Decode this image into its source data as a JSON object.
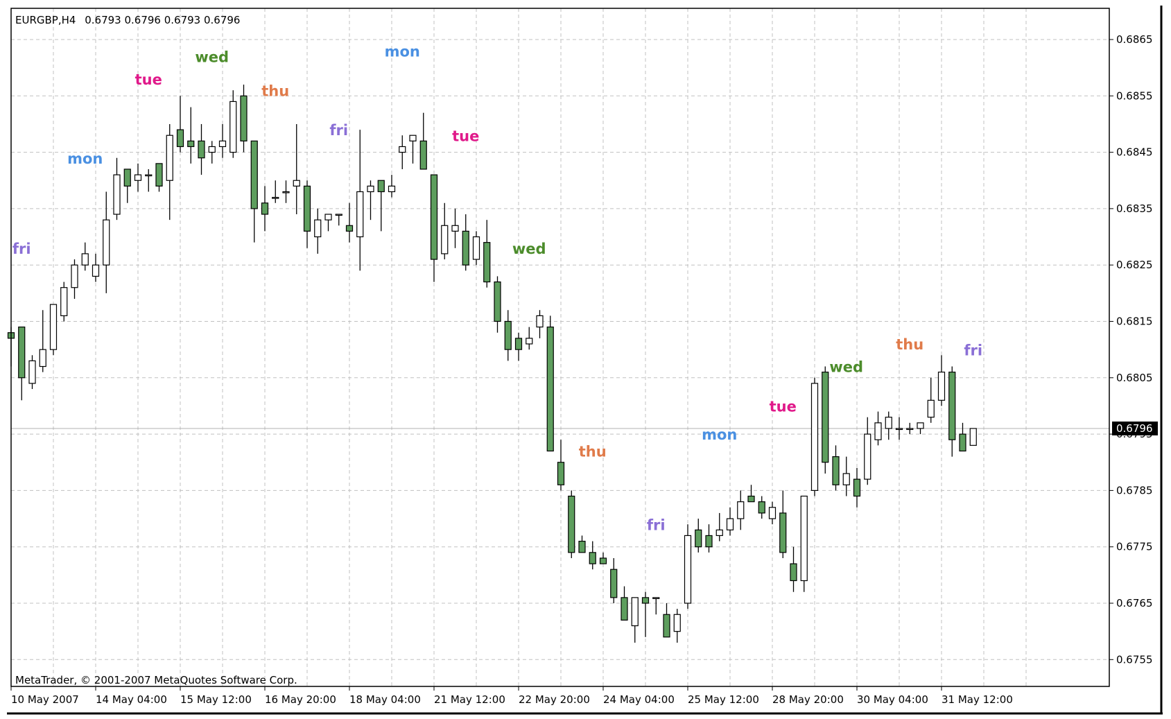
{
  "header": {
    "symbol": "EURGBP,H4",
    "ohlc": "0.6793 0.6796 0.6793 0.6796"
  },
  "footer": {
    "copyright": "MetaTrader, © 2001-2007 MetaQuotes Software Corp."
  },
  "current_price_label": "0.6796",
  "colors": {
    "bull_fill": "#ffffff",
    "bear_fill": "#5e9e5e",
    "grid": "#c0c0c0",
    "mon": "#4a90e2",
    "tue": "#e0198a",
    "wed": "#4c8c2b",
    "thu": "#e07b4a",
    "fri": "#8a6fd6"
  },
  "chart_data": {
    "type": "candlestick",
    "ylim": [
      0.6749,
      0.6873
    ],
    "y_ticks": [
      "0.6865",
      "0.6855",
      "0.6845",
      "0.6835",
      "0.6825",
      "0.6815",
      "0.6805",
      "0.6795",
      "0.6785",
      "0.6775",
      "0.6765",
      "0.6755"
    ],
    "x_tick_labels": [
      "10 May 2007",
      "14 May 04:00",
      "15 May 12:00",
      "16 May 20:00",
      "18 May 04:00",
      "21 May 12:00",
      "22 May 20:00",
      "24 May 04:00",
      "25 May 12:00",
      "28 May 20:00",
      "30 May 04:00",
      "31 May 12:00"
    ],
    "current_price": 0.6796,
    "day_labels": [
      {
        "text": "fri",
        "index": 1,
        "price": 0.6827,
        "day": "fri"
      },
      {
        "text": "mon",
        "index": 7,
        "price": 0.6843,
        "day": "mon"
      },
      {
        "text": "tue",
        "index": 13,
        "price": 0.6857,
        "day": "tue"
      },
      {
        "text": "wed",
        "index": 19,
        "price": 0.6861,
        "day": "wed"
      },
      {
        "text": "thu",
        "index": 25,
        "price": 0.6855,
        "day": "thu"
      },
      {
        "text": "fri",
        "index": 31,
        "price": 0.6848,
        "day": "fri"
      },
      {
        "text": "mon",
        "index": 37,
        "price": 0.6862,
        "day": "mon"
      },
      {
        "text": "tue",
        "index": 43,
        "price": 0.6847,
        "day": "tue"
      },
      {
        "text": "wed",
        "index": 49,
        "price": 0.6827,
        "day": "wed"
      },
      {
        "text": "thu",
        "index": 55,
        "price": 0.6791,
        "day": "thu"
      },
      {
        "text": "fri",
        "index": 61,
        "price": 0.6778,
        "day": "fri"
      },
      {
        "text": "mon",
        "index": 67,
        "price": 0.6794,
        "day": "mon"
      },
      {
        "text": "tue",
        "index": 73,
        "price": 0.6799,
        "day": "tue"
      },
      {
        "text": "wed",
        "index": 79,
        "price": 0.6806,
        "day": "wed"
      },
      {
        "text": "thu",
        "index": 85,
        "price": 0.681,
        "day": "thu"
      },
      {
        "text": "fri",
        "index": 91,
        "price": 0.6809,
        "day": "fri"
      }
    ],
    "candles": [
      {
        "o": 0.6813,
        "h": 0.6814,
        "l": 0.6807,
        "c": 0.6812
      },
      {
        "o": 0.6814,
        "h": 0.6814,
        "l": 0.6801,
        "c": 0.6805
      },
      {
        "o": 0.6804,
        "h": 0.6809,
        "l": 0.6803,
        "c": 0.6808
      },
      {
        "o": 0.6807,
        "h": 0.6817,
        "l": 0.6806,
        "c": 0.681
      },
      {
        "o": 0.681,
        "h": 0.6818,
        "l": 0.6809,
        "c": 0.6818
      },
      {
        "o": 0.6816,
        "h": 0.6822,
        "l": 0.6815,
        "c": 0.6821
      },
      {
        "o": 0.6821,
        "h": 0.6826,
        "l": 0.6819,
        "c": 0.6825
      },
      {
        "o": 0.6825,
        "h": 0.6829,
        "l": 0.6824,
        "c": 0.6827
      },
      {
        "o": 0.6823,
        "h": 0.6827,
        "l": 0.6822,
        "c": 0.6825
      },
      {
        "o": 0.6825,
        "h": 0.6838,
        "l": 0.682,
        "c": 0.6833
      },
      {
        "o": 0.6834,
        "h": 0.6844,
        "l": 0.6833,
        "c": 0.6841
      },
      {
        "o": 0.6842,
        "h": 0.6842,
        "l": 0.6836,
        "c": 0.6839
      },
      {
        "o": 0.684,
        "h": 0.6843,
        "l": 0.6838,
        "c": 0.6841
      },
      {
        "o": 0.6841,
        "h": 0.6842,
        "l": 0.6838,
        "c": 0.6841
      },
      {
        "o": 0.6843,
        "h": 0.6843,
        "l": 0.6838,
        "c": 0.6839
      },
      {
        "o": 0.684,
        "h": 0.685,
        "l": 0.6833,
        "c": 0.6848
      },
      {
        "o": 0.6849,
        "h": 0.6855,
        "l": 0.6845,
        "c": 0.6846
      },
      {
        "o": 0.6847,
        "h": 0.6853,
        "l": 0.6843,
        "c": 0.6846
      },
      {
        "o": 0.6847,
        "h": 0.685,
        "l": 0.6841,
        "c": 0.6844
      },
      {
        "o": 0.6845,
        "h": 0.6847,
        "l": 0.6843,
        "c": 0.6846
      },
      {
        "o": 0.6846,
        "h": 0.685,
        "l": 0.6844,
        "c": 0.6847
      },
      {
        "o": 0.6845,
        "h": 0.6856,
        "l": 0.6844,
        "c": 0.6854
      },
      {
        "o": 0.6855,
        "h": 0.6857,
        "l": 0.6845,
        "c": 0.6847
      },
      {
        "o": 0.6847,
        "h": 0.6847,
        "l": 0.6829,
        "c": 0.6835
      },
      {
        "o": 0.6836,
        "h": 0.6839,
        "l": 0.6831,
        "c": 0.6834
      },
      {
        "o": 0.6837,
        "h": 0.684,
        "l": 0.6836,
        "c": 0.6837
      },
      {
        "o": 0.6838,
        "h": 0.684,
        "l": 0.6836,
        "c": 0.6838
      },
      {
        "o": 0.6839,
        "h": 0.685,
        "l": 0.6834,
        "c": 0.684
      },
      {
        "o": 0.6839,
        "h": 0.684,
        "l": 0.6828,
        "c": 0.6831
      },
      {
        "o": 0.683,
        "h": 0.6835,
        "l": 0.6827,
        "c": 0.6833
      },
      {
        "o": 0.6833,
        "h": 0.6834,
        "l": 0.6831,
        "c": 0.6834
      },
      {
        "o": 0.6834,
        "h": 0.6834,
        "l": 0.6832,
        "c": 0.6834
      },
      {
        "o": 0.6832,
        "h": 0.6836,
        "l": 0.6829,
        "c": 0.6831
      },
      {
        "o": 0.683,
        "h": 0.6849,
        "l": 0.6824,
        "c": 0.6838
      },
      {
        "o": 0.6838,
        "h": 0.684,
        "l": 0.6833,
        "c": 0.6839
      },
      {
        "o": 0.684,
        "h": 0.684,
        "l": 0.6831,
        "c": 0.6838
      },
      {
        "o": 0.6838,
        "h": 0.6841,
        "l": 0.6837,
        "c": 0.6839
      },
      {
        "o": 0.6845,
        "h": 0.6848,
        "l": 0.6842,
        "c": 0.6846
      },
      {
        "o": 0.6847,
        "h": 0.6848,
        "l": 0.6843,
        "c": 0.6848
      },
      {
        "o": 0.6847,
        "h": 0.6852,
        "l": 0.6842,
        "c": 0.6842
      },
      {
        "o": 0.6841,
        "h": 0.6841,
        "l": 0.6822,
        "c": 0.6826
      },
      {
        "o": 0.6827,
        "h": 0.6836,
        "l": 0.6826,
        "c": 0.6832
      },
      {
        "o": 0.6831,
        "h": 0.6835,
        "l": 0.6828,
        "c": 0.6832
      },
      {
        "o": 0.6831,
        "h": 0.6834,
        "l": 0.6824,
        "c": 0.6825
      },
      {
        "o": 0.6826,
        "h": 0.6831,
        "l": 0.6825,
        "c": 0.683
      },
      {
        "o": 0.6829,
        "h": 0.6833,
        "l": 0.6821,
        "c": 0.6822
      },
      {
        "o": 0.6822,
        "h": 0.6823,
        "l": 0.6813,
        "c": 0.6815
      },
      {
        "o": 0.6815,
        "h": 0.6817,
        "l": 0.6808,
        "c": 0.681
      },
      {
        "o": 0.6812,
        "h": 0.6813,
        "l": 0.6808,
        "c": 0.681
      },
      {
        "o": 0.6811,
        "h": 0.6814,
        "l": 0.681,
        "c": 0.6812
      },
      {
        "o": 0.6814,
        "h": 0.6817,
        "l": 0.6812,
        "c": 0.6816
      },
      {
        "o": 0.6814,
        "h": 0.6816,
        "l": 0.6792,
        "c": 0.6792
      },
      {
        "o": 0.679,
        "h": 0.6794,
        "l": 0.6785,
        "c": 0.6786
      },
      {
        "o": 0.6784,
        "h": 0.6785,
        "l": 0.6773,
        "c": 0.6774
      },
      {
        "o": 0.6776,
        "h": 0.6777,
        "l": 0.6774,
        "c": 0.6774
      },
      {
        "o": 0.6774,
        "h": 0.6776,
        "l": 0.6771,
        "c": 0.6772
      },
      {
        "o": 0.6773,
        "h": 0.6774,
        "l": 0.6772,
        "c": 0.6772
      },
      {
        "o": 0.6771,
        "h": 0.6773,
        "l": 0.6765,
        "c": 0.6766
      },
      {
        "o": 0.6766,
        "h": 0.6768,
        "l": 0.6762,
        "c": 0.6762
      },
      {
        "o": 0.6761,
        "h": 0.6766,
        "l": 0.6758,
        "c": 0.6766
      },
      {
        "o": 0.6766,
        "h": 0.6767,
        "l": 0.6759,
        "c": 0.6765
      },
      {
        "o": 0.6766,
        "h": 0.6766,
        "l": 0.6763,
        "c": 0.6766
      },
      {
        "o": 0.6763,
        "h": 0.6765,
        "l": 0.676,
        "c": 0.6759
      },
      {
        "o": 0.676,
        "h": 0.6764,
        "l": 0.6758,
        "c": 0.6763
      },
      {
        "o": 0.6765,
        "h": 0.6779,
        "l": 0.6764,
        "c": 0.6777
      },
      {
        "o": 0.6778,
        "h": 0.678,
        "l": 0.6774,
        "c": 0.6775
      },
      {
        "o": 0.6777,
        "h": 0.6779,
        "l": 0.6774,
        "c": 0.6775
      },
      {
        "o": 0.6777,
        "h": 0.6781,
        "l": 0.6776,
        "c": 0.6778
      },
      {
        "o": 0.6778,
        "h": 0.6782,
        "l": 0.6777,
        "c": 0.678
      },
      {
        "o": 0.678,
        "h": 0.6785,
        "l": 0.6778,
        "c": 0.6783
      },
      {
        "o": 0.6784,
        "h": 0.6786,
        "l": 0.6783,
        "c": 0.6783
      },
      {
        "o": 0.6783,
        "h": 0.6784,
        "l": 0.678,
        "c": 0.6781
      },
      {
        "o": 0.678,
        "h": 0.6783,
        "l": 0.6779,
        "c": 0.6782
      },
      {
        "o": 0.6781,
        "h": 0.6785,
        "l": 0.6773,
        "c": 0.6774
      },
      {
        "o": 0.6772,
        "h": 0.6775,
        "l": 0.6767,
        "c": 0.6769
      },
      {
        "o": 0.6769,
        "h": 0.6784,
        "l": 0.6767,
        "c": 0.6784
      },
      {
        "o": 0.6785,
        "h": 0.6805,
        "l": 0.6784,
        "c": 0.6804
      },
      {
        "o": 0.6806,
        "h": 0.6807,
        "l": 0.6788,
        "c": 0.679
      },
      {
        "o": 0.6791,
        "h": 0.6793,
        "l": 0.6785,
        "c": 0.6786
      },
      {
        "o": 0.6786,
        "h": 0.6791,
        "l": 0.6784,
        "c": 0.6788
      },
      {
        "o": 0.6787,
        "h": 0.6789,
        "l": 0.6782,
        "c": 0.6784
      },
      {
        "o": 0.6787,
        "h": 0.6798,
        "l": 0.6786,
        "c": 0.6795
      },
      {
        "o": 0.6794,
        "h": 0.6799,
        "l": 0.6793,
        "c": 0.6797
      },
      {
        "o": 0.6796,
        "h": 0.6799,
        "l": 0.6794,
        "c": 0.6798
      },
      {
        "o": 0.6796,
        "h": 0.6798,
        "l": 0.6794,
        "c": 0.6796
      },
      {
        "o": 0.6796,
        "h": 0.6797,
        "l": 0.6795,
        "c": 0.6796
      },
      {
        "o": 0.6796,
        "h": 0.6797,
        "l": 0.6795,
        "c": 0.6797
      },
      {
        "o": 0.6798,
        "h": 0.6805,
        "l": 0.6797,
        "c": 0.6801
      },
      {
        "o": 0.6801,
        "h": 0.6809,
        "l": 0.68,
        "c": 0.6806
      },
      {
        "o": 0.6806,
        "h": 0.6807,
        "l": 0.6791,
        "c": 0.6794
      },
      {
        "o": 0.6795,
        "h": 0.6797,
        "l": 0.6792,
        "c": 0.6792
      },
      {
        "o": 0.6793,
        "h": 0.6796,
        "l": 0.6793,
        "c": 0.6796
      }
    ]
  }
}
